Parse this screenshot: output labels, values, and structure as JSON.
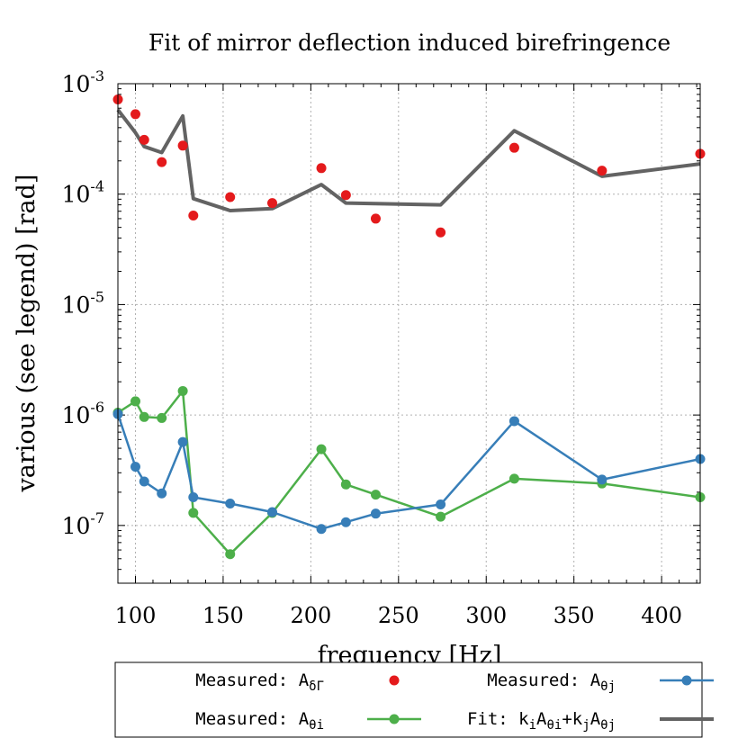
{
  "chart_data": {
    "type": "line",
    "title": "Fit of mirror deflection induced birefringence",
    "xlabel": "frequency [Hz]",
    "ylabel": "various (see legend) [rad]",
    "xlim": [
      90,
      422
    ],
    "ylim": [
      3e-08,
      0.001
    ],
    "yscale": "log",
    "grid": true,
    "legend_position": "bottom-outside",
    "x_ticks": [
      100,
      150,
      200,
      250,
      300,
      350,
      400
    ],
    "x_tick_labels": [
      "100",
      "150",
      "200",
      "250",
      "300",
      "350",
      "400"
    ],
    "y_ticks": [
      {
        "value": 1e-07,
        "base": "10",
        "exp": "-7"
      },
      {
        "value": 1e-06,
        "base": "10",
        "exp": "-6"
      },
      {
        "value": 1e-05,
        "base": "10",
        "exp": "-5"
      },
      {
        "value": 0.0001,
        "base": "10",
        "exp": "-4"
      },
      {
        "value": 0.001,
        "base": "10",
        "exp": "-3"
      }
    ],
    "series": [
      {
        "key": "dgamma",
        "legend_prefix": "Measured: ",
        "legend_main": "A",
        "legend_sub": "δΓ",
        "style": "points",
        "color": "#e41a1c",
        "x": [
          90,
          100,
          105,
          115,
          127,
          133,
          154,
          178,
          206,
          220,
          237,
          274,
          316,
          366,
          422
        ],
        "y": [
          0.00072,
          0.00053,
          0.00031,
          0.000195,
          0.000275,
          6.4e-05,
          9.4e-05,
          8.3e-05,
          0.000172,
          9.8e-05,
          6e-05,
          4.5e-05,
          0.000263,
          0.000163,
          0.000232
        ]
      },
      {
        "key": "thetai",
        "legend_prefix": "Measured: ",
        "legend_main": "A",
        "legend_sub": "θi",
        "style": "linespoints",
        "color": "#4daf4a",
        "x": [
          90,
          100,
          105,
          115,
          127,
          133,
          154,
          178,
          206,
          220,
          237,
          274,
          316,
          366,
          422
        ],
        "y": [
          1.05e-06,
          1.33e-06,
          9.6e-07,
          9.4e-07,
          1.65e-06,
          1.3e-07,
          5.5e-08,
          1.3e-07,
          4.9e-07,
          2.35e-07,
          1.9e-07,
          1.2e-07,
          2.65e-07,
          2.4e-07,
          1.8e-07
        ]
      },
      {
        "key": "thetaj",
        "legend_prefix": "Measured: ",
        "legend_main": "A",
        "legend_sub": "θj",
        "style": "linespoints",
        "color": "#377eb8",
        "x": [
          90,
          100,
          105,
          115,
          127,
          133,
          154,
          178,
          206,
          220,
          237,
          274,
          316,
          366,
          422
        ],
        "y": [
          1.02e-06,
          3.4e-07,
          2.5e-07,
          1.95e-07,
          5.7e-07,
          1.8e-07,
          1.58e-07,
          1.32e-07,
          9.3e-08,
          1.07e-07,
          1.28e-07,
          1.55e-07,
          8.8e-07,
          2.6e-07,
          4e-07
        ]
      },
      {
        "key": "fit",
        "legend_prefix": "Fit: ",
        "legend_formula": [
          {
            "t": "k"
          },
          {
            "t": "i",
            "sub": true
          },
          {
            "t": "A"
          },
          {
            "t": "θi",
            "sub": true
          },
          {
            "t": "+k"
          },
          {
            "t": "j",
            "sub": true
          },
          {
            "t": "A"
          },
          {
            "t": "θj",
            "sub": true
          }
        ],
        "style": "line",
        "color": "#636363",
        "x": [
          90,
          100,
          105,
          115,
          127,
          133,
          154,
          178,
          206,
          220,
          237,
          274,
          316,
          366,
          422
        ],
        "y": [
          0.00058,
          0.00036,
          0.00027,
          0.000238,
          0.00051,
          9.1e-05,
          7.1e-05,
          7.4e-05,
          0.000122,
          8.3e-05,
          8.2e-05,
          8e-05,
          0.000375,
          0.000145,
          0.000188
        ]
      }
    ]
  }
}
